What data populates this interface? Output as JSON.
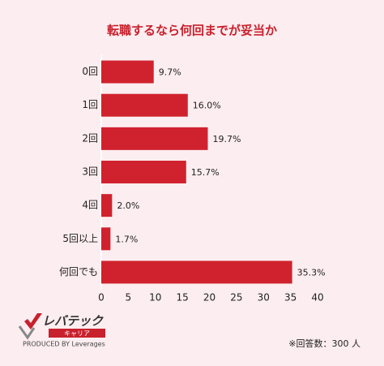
{
  "chart_data": {
    "type": "bar",
    "orientation": "horizontal",
    "title": "転職するなら何回までが妥当か",
    "categories": [
      "0回",
      "1回",
      "2回",
      "3回",
      "4回",
      "5回以上",
      "何回でも"
    ],
    "values": [
      9.7,
      16.0,
      19.7,
      15.7,
      2.0,
      1.7,
      35.3
    ],
    "value_labels": [
      "9.7%",
      "16.0%",
      "19.7%",
      "15.7%",
      "2.0%",
      "1.7%",
      "35.3%"
    ],
    "color": "#d0222e",
    "xlim": [
      0,
      40
    ],
    "xticks": [
      0,
      5,
      10,
      15,
      20,
      25,
      30,
      35,
      40
    ],
    "note": "※回答数：300 人"
  },
  "logo": {
    "name": "レバテック",
    "sub": "キャリア",
    "credit": "PRODUCED BY Leverages"
  }
}
